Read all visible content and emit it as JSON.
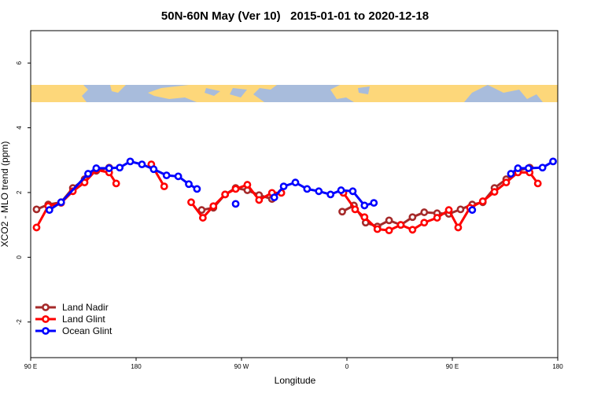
{
  "chart_data": {
    "type": "line",
    "title": "50N-60N May (Ver 10)   2015-01-01 to 2020-12-18",
    "x_label": "Longitude",
    "y_label": "XCO2 - MLO trend (ppm)",
    "xlim": [
      90,
      540
    ],
    "ylim": [
      -3.1,
      7
    ],
    "xticks": [
      {
        "value": 90,
        "label": "90 E"
      },
      180,
      {
        "value": 270,
        "label": "90 W"
      },
      {
        "value": 360,
        "label": "0"
      },
      {
        "value": 450,
        "label": "90 E"
      },
      {
        "value": 540,
        "label": "180"
      }
    ],
    "yticks": [
      -2,
      0,
      2,
      4,
      6
    ],
    "legend": "lower left",
    "series": [
      {
        "name": "Land Nadir",
        "color": "#a52a2a",
        "x": [
          95,
          105,
          116,
          126,
          136,
          146,
          157,
          null,
          236,
          246,
          256,
          265,
          275,
          285,
          296,
          null,
          356,
          366,
          376,
          386,
          396,
          406,
          416,
          426,
          437,
          447,
          457,
          467,
          476,
          486,
          496,
          506,
          516
        ],
        "values": [
          1.48,
          1.63,
          1.7,
          2.14,
          2.41,
          2.67,
          2.77,
          null,
          1.46,
          1.53,
          1.94,
          2.14,
          2.07,
          1.92,
          1.8,
          null,
          1.41,
          1.6,
          1.07,
          0.95,
          1.14,
          1.0,
          1.24,
          1.39,
          1.36,
          1.34,
          1.48,
          1.63,
          1.7,
          2.14,
          2.41,
          2.67,
          2.77
        ]
      },
      {
        "name": "Land Glint",
        "color": "#ff0000",
        "x": [
          95,
          105,
          116,
          126,
          136,
          146,
          157,
          163,
          null,
          193,
          204,
          null,
          227,
          237,
          246,
          256,
          265,
          275,
          285,
          296,
          304,
          null,
          357,
          367,
          375,
          386,
          396,
          406,
          416,
          426,
          437,
          447,
          455,
          465,
          476,
          486,
          496,
          506,
          516,
          523
        ],
        "values": [
          0.92,
          1.58,
          1.68,
          2.04,
          2.31,
          2.7,
          2.62,
          2.28,
          null,
          2.87,
          2.19,
          null,
          1.7,
          1.22,
          1.58,
          1.94,
          2.11,
          2.24,
          1.77,
          1.99,
          1.99,
          null,
          1.99,
          1.48,
          1.24,
          0.87,
          0.83,
          1.0,
          0.85,
          1.07,
          1.22,
          1.46,
          0.92,
          1.53,
          1.73,
          2.02,
          2.31,
          2.62,
          2.62,
          2.28
        ]
      },
      {
        "name": "Ocean Glint",
        "color": "#0000ff",
        "x": [
          106,
          116,
          139,
          146,
          157,
          166,
          175,
          185,
          195,
          206,
          216,
          225,
          232,
          null,
          265,
          null,
          298,
          306,
          316,
          326,
          336,
          346,
          355,
          365,
          375,
          383,
          null,
          467,
          null,
          500,
          506,
          515,
          527,
          536
        ],
        "values": [
          1.46,
          1.7,
          2.58,
          2.75,
          2.75,
          2.77,
          2.96,
          2.87,
          2.72,
          2.53,
          2.5,
          2.26,
          2.11,
          null,
          1.65,
          null,
          1.85,
          2.19,
          2.31,
          2.11,
          2.04,
          1.94,
          2.07,
          2.04,
          1.6,
          1.68,
          null,
          1.46,
          null,
          2.58,
          2.75,
          2.75,
          2.77,
          2.96
        ]
      }
    ]
  }
}
